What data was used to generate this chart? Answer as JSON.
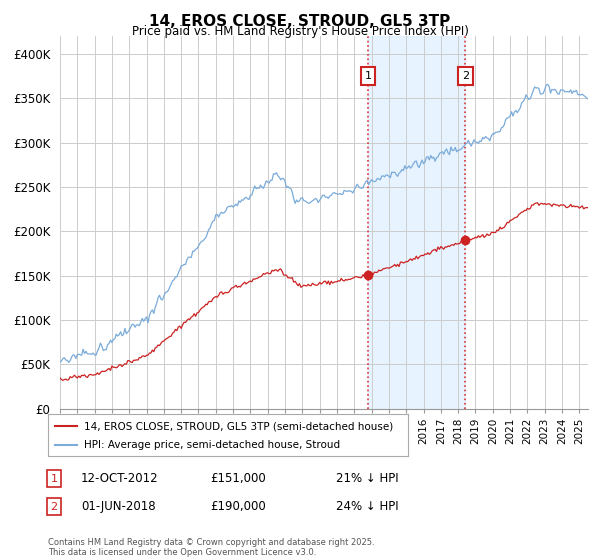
{
  "title": "14, EROS CLOSE, STROUD, GL5 3TP",
  "subtitle": "Price paid vs. HM Land Registry's House Price Index (HPI)",
  "ylim": [
    0,
    420000
  ],
  "yticks": [
    0,
    50000,
    100000,
    150000,
    200000,
    250000,
    300000,
    350000,
    400000
  ],
  "ytick_labels": [
    "£0",
    "£50K",
    "£100K",
    "£150K",
    "£200K",
    "£250K",
    "£300K",
    "£350K",
    "£400K"
  ],
  "xlim_start": 1995.0,
  "xlim_end": 2025.5,
  "sale1_date": 2012.79,
  "sale1_price": 151000,
  "sale1_label": "1",
  "sale1_date_str": "12-OCT-2012",
  "sale1_hpi_pct": "21% ↓ HPI",
  "sale2_date": 2018.42,
  "sale2_price": 190000,
  "sale2_label": "2",
  "sale2_date_str": "01-JUN-2018",
  "sale2_hpi_pct": "24% ↓ HPI",
  "hpi_color": "#7aabda",
  "price_color": "#cc2222",
  "legend_entry1": "14, EROS CLOSE, STROUD, GL5 3TP (semi-detached house)",
  "legend_entry2": "HPI: Average price, semi-detached house, Stroud",
  "footer": "Contains HM Land Registry data © Crown copyright and database right 2025.\nThis data is licensed under the Open Government Licence v3.0.",
  "background_color": "#ffffff",
  "grid_color": "#cccccc",
  "shade_color": "#ddeeff"
}
